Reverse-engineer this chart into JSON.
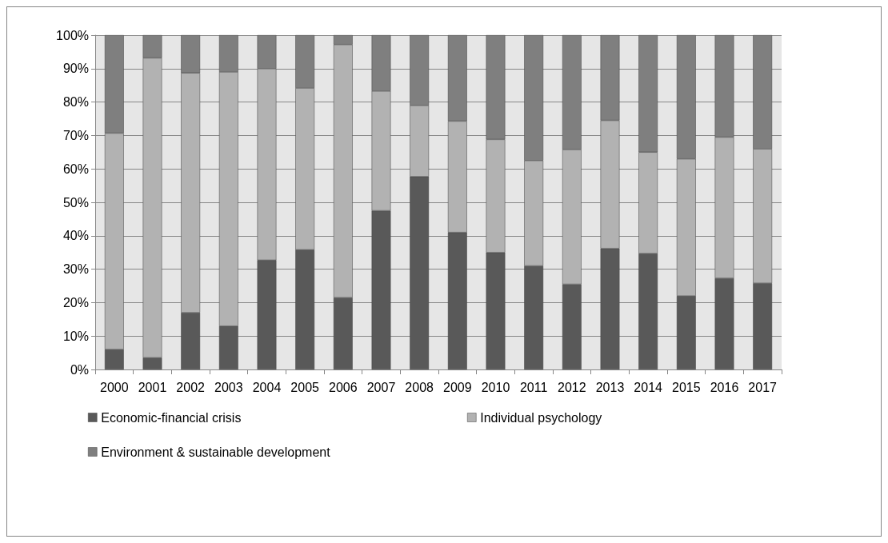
{
  "chart_data": {
    "type": "bar",
    "stacked": true,
    "categories": [
      "2000",
      "2001",
      "2002",
      "2003",
      "2004",
      "2005",
      "2006",
      "2007",
      "2008",
      "2009",
      "2010",
      "2011",
      "2012",
      "2013",
      "2014",
      "2015",
      "2016",
      "2017"
    ],
    "series": [
      {
        "name": "Economic-financial crisis",
        "color": "#595959",
        "values": [
          6,
          3.5,
          17,
          13,
          32.7,
          35.8,
          21.5,
          47.5,
          57.7,
          41,
          35,
          31,
          25.5,
          36.2,
          34.7,
          22,
          27.3,
          25.8
        ]
      },
      {
        "name": "Individual psychology",
        "color": "#b2b2b2",
        "values": [
          64.7,
          89.7,
          71.7,
          76,
          57.3,
          48.4,
          75.7,
          35.8,
          21.3,
          33.3,
          33.8,
          31.5,
          40.3,
          38.3,
          30.3,
          41,
          42.2,
          40.2
        ]
      },
      {
        "name": "Environment & sustainable development",
        "color": "#7f7f7f",
        "values": [
          29.3,
          6.8,
          11.3,
          11,
          10,
          15.8,
          2.8,
          16.7,
          21,
          25.7,
          31.2,
          37.5,
          34.2,
          25.5,
          35,
          37,
          30.5,
          34
        ]
      }
    ],
    "ylim": [
      0,
      100
    ],
    "yticks": [
      {
        "value": 0,
        "label": "0%"
      },
      {
        "value": 10,
        "label": "10%"
      },
      {
        "value": 20,
        "label": "20%"
      },
      {
        "value": 30,
        "label": "30%"
      },
      {
        "value": 40,
        "label": "40%"
      },
      {
        "value": 50,
        "label": "50%"
      },
      {
        "value": 60,
        "label": "60%"
      },
      {
        "value": 70,
        "label": "70%"
      },
      {
        "value": 80,
        "label": "80%"
      },
      {
        "value": 90,
        "label": "90%"
      },
      {
        "value": 100,
        "label": "100%"
      }
    ],
    "grid": "y",
    "legend": "bottom"
  }
}
